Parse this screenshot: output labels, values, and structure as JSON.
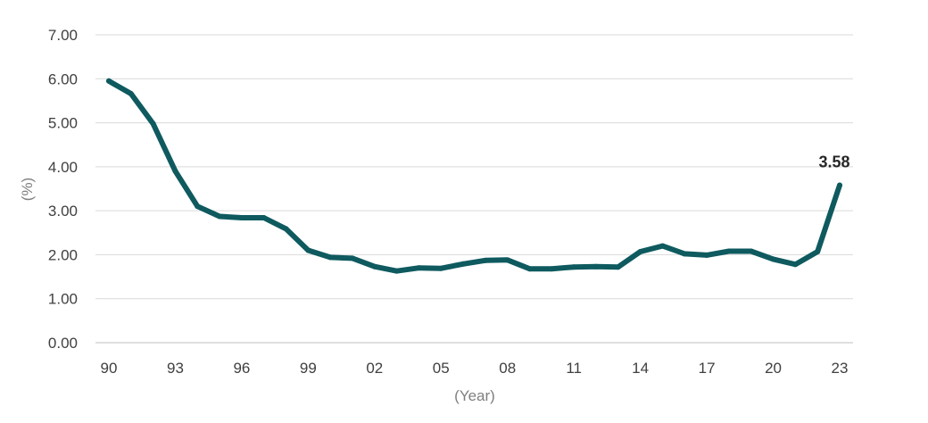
{
  "chart_data": {
    "type": "line",
    "title": "",
    "xlabel": "(Year)",
    "ylabel": "(%)",
    "ylim": [
      0,
      7
    ],
    "y_ticks": [
      "0.00",
      "1.00",
      "2.00",
      "3.00",
      "4.00",
      "5.00",
      "6.00",
      "7.00"
    ],
    "x_tick_labels": [
      "90",
      "93",
      "96",
      "99",
      "02",
      "05",
      "08",
      "11",
      "14",
      "17",
      "20",
      "23"
    ],
    "x": [
      1990,
      1991,
      1992,
      1993,
      1994,
      1995,
      1996,
      1997,
      1998,
      1999,
      2000,
      2001,
      2002,
      2003,
      2004,
      2005,
      2006,
      2007,
      2008,
      2009,
      2010,
      2011,
      2012,
      2013,
      2014,
      2015,
      2016,
      2017,
      2018,
      2019,
      2020,
      2021,
      2022,
      2023
    ],
    "series": [
      {
        "values": [
          5.95,
          5.66,
          4.98,
          3.9,
          3.1,
          2.87,
          2.84,
          2.84,
          2.59,
          2.1,
          1.94,
          1.92,
          1.73,
          1.63,
          1.7,
          1.69,
          1.79,
          1.87,
          1.88,
          1.68,
          1.68,
          1.72,
          1.73,
          1.72,
          2.07,
          2.2,
          2.02,
          1.99,
          2.08,
          2.08,
          1.9,
          1.78,
          2.07,
          3.58
        ],
        "color": "#0e5a5f"
      }
    ],
    "annotation": {
      "x": 2023,
      "label": "3.58"
    },
    "grid": true,
    "grid_color": "#d9d9d9"
  }
}
